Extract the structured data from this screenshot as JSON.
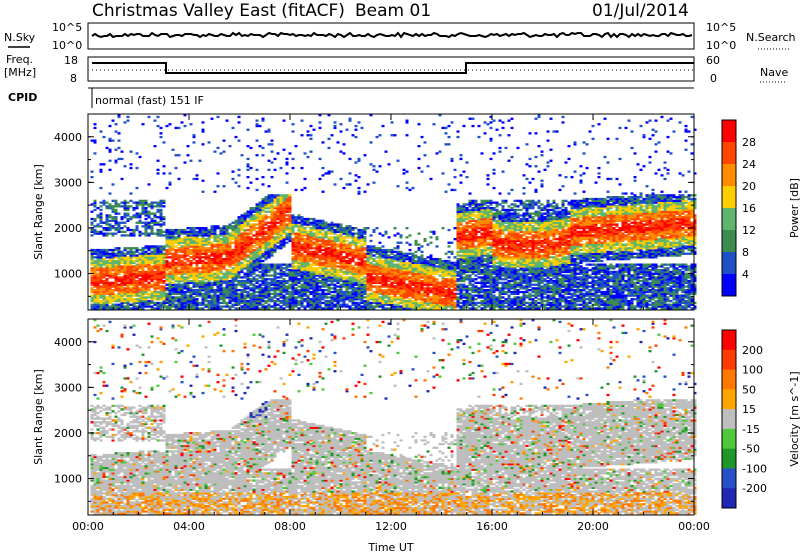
{
  "header": {
    "station": "Christmas Valley East (fitACF)",
    "beam": "Beam 01",
    "date": "01/Jul/2014"
  },
  "params_panel": {
    "nsky_label": "N.Sky",
    "nsearch_label": "N.Search",
    "freq_label": "Freq.",
    "freq_unit": "[MHz]",
    "nave_label": "Nave",
    "cpid_label": "CPID",
    "cpid_value": "normal (fast) 151 IF",
    "noise_ticks": [
      "10^5",
      "10^0"
    ],
    "noise_right_ticks": [
      "10^5",
      "10^0"
    ],
    "freq_ticks": [
      "18",
      "8"
    ],
    "nave_ticks": [
      "60",
      "0"
    ]
  },
  "chart_data": [
    {
      "type": "heatmap",
      "name": "power",
      "xlabel": "Time UT",
      "ylabel": "Slant Range [km]",
      "x_ticks": [
        "00:00",
        "04:00",
        "08:00",
        "12:00",
        "16:00",
        "20:00",
        "00:00"
      ],
      "y_ticks": [
        1000,
        2000,
        3000,
        4000
      ],
      "ylim": [
        200,
        4500
      ],
      "xlim_hours": [
        0,
        24
      ],
      "colorbar": {
        "label": "Power [dB]",
        "ticks": [
          4,
          8,
          12,
          16,
          20,
          24,
          28
        ],
        "colors": [
          "#0000ff",
          "#1e50c8",
          "#3c8c50",
          "#5fb46e",
          "#ffcd00",
          "#ff8c00",
          "#ff4600",
          "#ff0000"
        ]
      }
    },
    {
      "type": "heatmap",
      "name": "velocity",
      "xlabel": "Time UT",
      "ylabel": "Slant Range [km]",
      "x_ticks": [
        "00:00",
        "04:00",
        "08:00",
        "12:00",
        "16:00",
        "20:00",
        "00:00"
      ],
      "y_ticks": [
        1000,
        2000,
        3000,
        4000
      ],
      "ylim": [
        200,
        4500
      ],
      "xlim_hours": [
        0,
        24
      ],
      "colorbar": {
        "label": "Velocity [m s^-1]",
        "ticks": [
          200,
          100,
          50,
          15,
          -15,
          -50,
          -100,
          -200
        ],
        "colors": [
          "#1e28b4",
          "#2850c8",
          "#1e9628",
          "#50c83c",
          "#bebebe",
          "#ffa500",
          "#ff7800",
          "#ff3c00",
          "#ff0000"
        ]
      }
    }
  ]
}
